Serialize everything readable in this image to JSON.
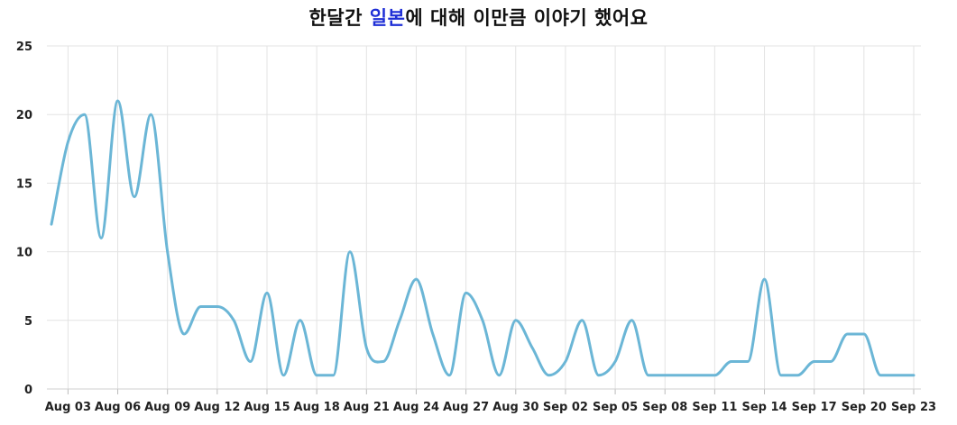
{
  "chart_data": {
    "type": "line",
    "title": {
      "before": "한달간 ",
      "highlight": "일본",
      "after": "에 대해 이만큼 이야기 했어요"
    },
    "colors": {
      "line": "#6bb6d6",
      "highlight": "#1f2fd6",
      "grid": "#e3e3e3"
    },
    "xlabel": "",
    "ylabel": "",
    "ylim": [
      0,
      25
    ],
    "yticks": [
      0,
      5,
      10,
      15,
      20,
      25
    ],
    "grid": true,
    "legend": "none",
    "x": [
      "Aug 02",
      "Aug 03",
      "Aug 04",
      "Aug 05",
      "Aug 06",
      "Aug 07",
      "Aug 08",
      "Aug 09",
      "Aug 10",
      "Aug 11",
      "Aug 12",
      "Aug 13",
      "Aug 14",
      "Aug 15",
      "Aug 16",
      "Aug 17",
      "Aug 18",
      "Aug 19",
      "Aug 20",
      "Aug 21",
      "Aug 22",
      "Aug 23",
      "Aug 24",
      "Aug 25",
      "Aug 26",
      "Aug 27",
      "Aug 28",
      "Aug 29",
      "Aug 30",
      "Aug 31",
      "Sep 01",
      "Sep 02",
      "Sep 03",
      "Sep 04",
      "Sep 05",
      "Sep 06",
      "Sep 07",
      "Sep 08",
      "Sep 09",
      "Sep 10",
      "Sep 11",
      "Sep 12",
      "Sep 13",
      "Sep 14",
      "Sep 15",
      "Sep 16",
      "Sep 17",
      "Sep 18",
      "Sep 19",
      "Sep 20",
      "Sep 21",
      "Sep 22",
      "Sep 23"
    ],
    "xtick_labels": [
      "Aug 03",
      "Aug 06",
      "Aug 09",
      "Aug 12",
      "Aug 15",
      "Aug 18",
      "Aug 21",
      "Aug 24",
      "Aug 27",
      "Aug 30",
      "Sep 02",
      "Sep 05",
      "Sep 08",
      "Sep 11",
      "Sep 14",
      "Sep 17",
      "Sep 20",
      "Sep 23"
    ],
    "values": [
      12,
      18,
      20,
      11,
      21,
      14,
      20,
      10,
      4,
      6,
      6,
      5,
      2,
      7,
      1,
      5,
      1,
      1,
      10,
      3,
      2,
      5,
      8,
      4,
      1,
      7,
      5,
      1,
      5,
      3,
      1,
      2,
      5,
      1,
      2,
      5,
      1,
      1,
      1,
      1,
      1,
      2,
      2,
      8,
      1,
      1,
      2,
      2,
      4,
      4,
      1,
      1,
      1
    ]
  }
}
